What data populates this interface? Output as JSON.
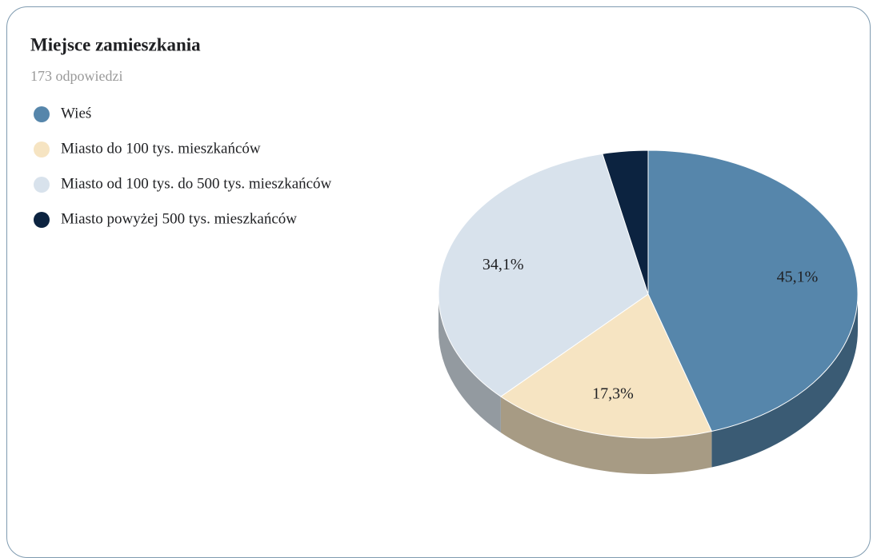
{
  "chart_data": {
    "type": "pie3d",
    "title": "Miejsce zamieszkania",
    "subtitle": "173 odpowiedzi",
    "categories": [
      "Wieś",
      "Miasto do 100 tys. mieszkańców",
      "Miasto od 100 tys. do 500 tys. mieszkańców",
      "Miasto powyżej 500 tys. mieszkańców"
    ],
    "values": [
      45.1,
      17.3,
      34.1,
      3.5
    ],
    "value_labels": [
      "45,1%",
      "17,3%",
      "34,1%",
      null
    ],
    "colors": [
      "#5686ab",
      "#f6e4c2",
      "#d8e2ec",
      "#0c2340"
    ]
  }
}
